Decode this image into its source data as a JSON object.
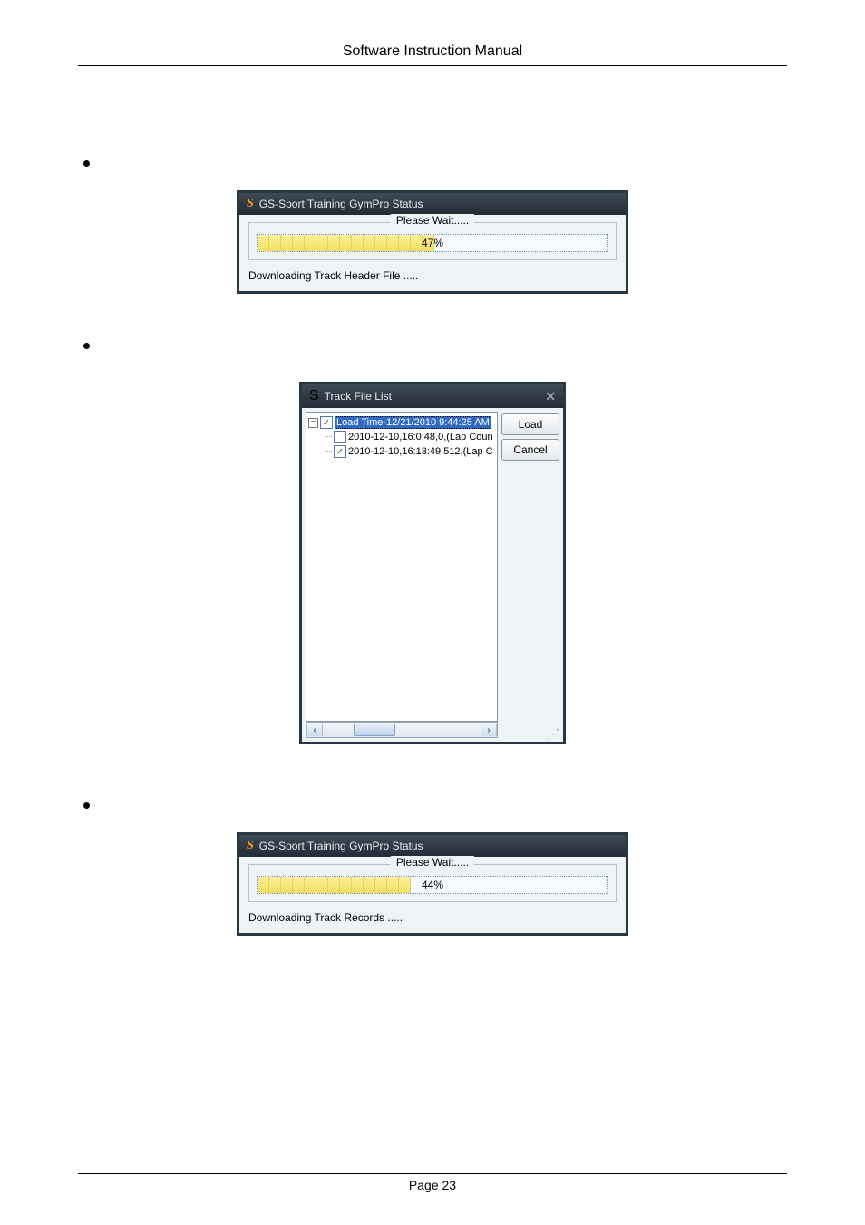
{
  "header": {
    "title": "Software Instruction Manual"
  },
  "dialog1": {
    "window_title": "GS-Sport Training GymPro Status",
    "legend": "Please Wait.....",
    "percent_label": "47%",
    "filled_cells": 15,
    "status": "Downloading Track Header File ....."
  },
  "track_dialog": {
    "window_title": "Track File List",
    "root_label": "Load Time-12/21/2010 9:44:25 AM",
    "item1": "2010-12-10,16:0:48,0,(Lap Coun",
    "item2": "2010-12-10,16:13:49,512,(Lap C",
    "load_btn": "Load",
    "cancel_btn": "Cancel",
    "close_glyph": "✕"
  },
  "dialog2": {
    "window_title": "GS-Sport Training GymPro Status",
    "legend": "Please Wait.....",
    "percent_label": "44%",
    "filled_cells": 13,
    "status": "Downloading Track Records ....."
  },
  "footer": {
    "page": "Page 23"
  },
  "glyphs": {
    "s": "S",
    "minus": "−",
    "check": "✓",
    "left": "‹",
    "right": "›",
    "grip": "⋰"
  }
}
